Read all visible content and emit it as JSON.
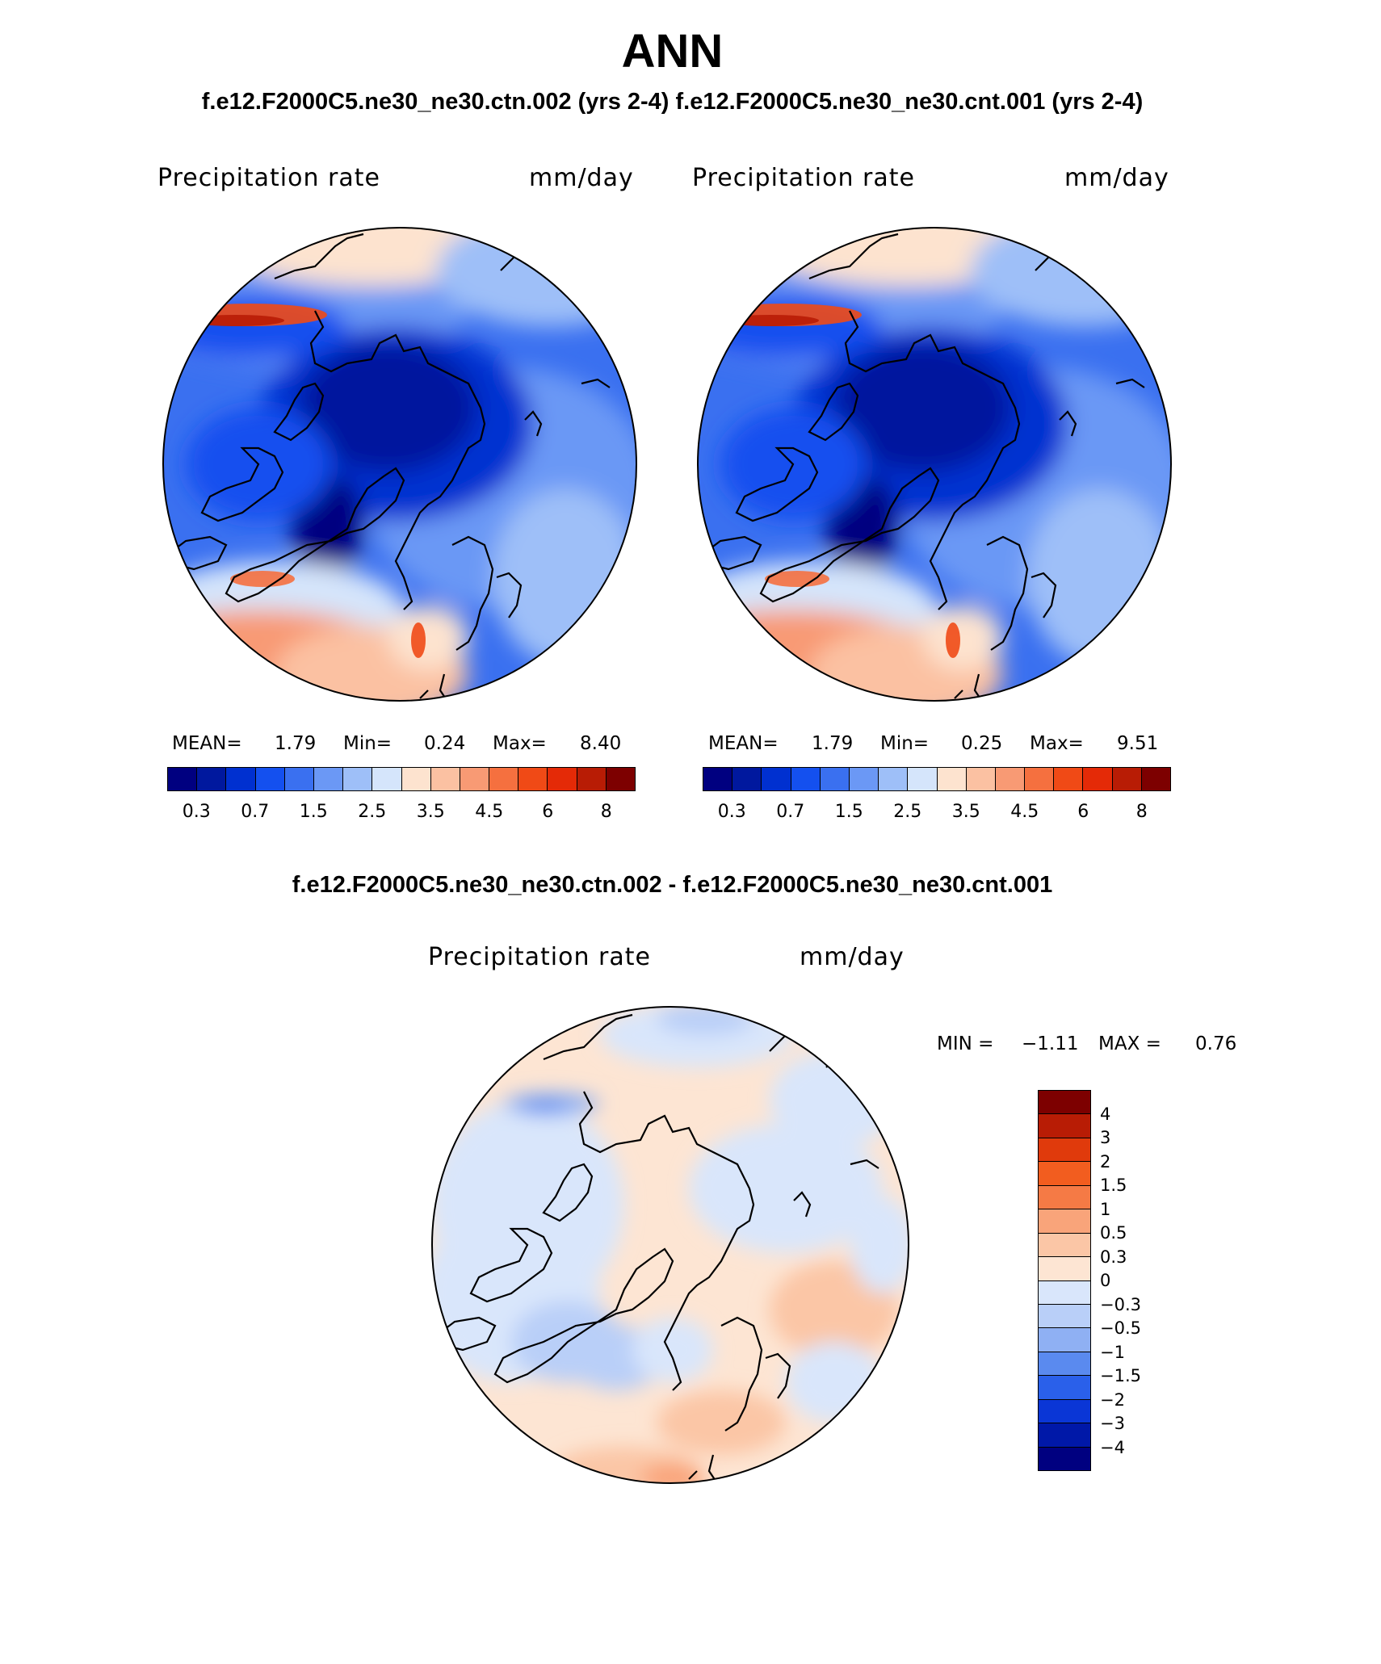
{
  "title": "ANN",
  "subtitle": "f.e12.F2000C5.ne30_ne30.ctn.002 (yrs 2-4) f.e12.F2000C5.ne30_ne30.cnt.001 (yrs 2-4)",
  "diff_title": "f.e12.F2000C5.ne30_ne30.ctn.002 - f.e12.F2000C5.ne30_ne30.cnt.001",
  "panels": [
    {
      "variable": "Precipitation rate",
      "units": "mm/day",
      "mean_label": "MEAN=",
      "mean": "1.79",
      "min_label": "Min=",
      "min": "0.24",
      "max_label": "Max=",
      "max": "8.40"
    },
    {
      "variable": "Precipitation rate",
      "units": "mm/day",
      "mean_label": "MEAN=",
      "mean": "1.79",
      "min_label": "Min=",
      "min": "0.25",
      "max_label": "Max=",
      "max": "9.51"
    }
  ],
  "diff_panel": {
    "variable": "Precipitation rate",
    "units": "mm/day",
    "min_label": "MIN =",
    "min": "−1.11",
    "max_label": "MAX =",
    "max": "0.76"
  },
  "abs_colorbar": {
    "colors": [
      "#000080",
      "#00189e",
      "#0030d0",
      "#1450ef",
      "#3a70f0",
      "#6b98f5",
      "#9ebff8",
      "#d5e5fb",
      "#fde3cf",
      "#fbc1a2",
      "#f89a74",
      "#f5703f",
      "#f04a16",
      "#e42a07",
      "#b81c05",
      "#7d0000"
    ],
    "tick_labels": [
      "0.3",
      "0.7",
      "1.5",
      "2.5",
      "3.5",
      "4.5",
      "6",
      "8"
    ]
  },
  "diff_colorbar": {
    "colors_top_to_bottom": [
      "#7d0000",
      "#b81c05",
      "#e03a0c",
      "#f25d1f",
      "#f57a45",
      "#f9a47a",
      "#fbc6a6",
      "#fde5d3",
      "#d9e6fb",
      "#b9cff8",
      "#8fb0f3",
      "#5a8aef",
      "#2a60ea",
      "#0a36d6",
      "#0018a8",
      "#000080"
    ],
    "tick_labels": [
      "4",
      "3",
      "2",
      "1.5",
      "1",
      "0.5",
      "0.3",
      "0",
      "−0.3",
      "−0.5",
      "−1",
      "−1.5",
      "−2",
      "−3",
      "−4"
    ]
  }
}
